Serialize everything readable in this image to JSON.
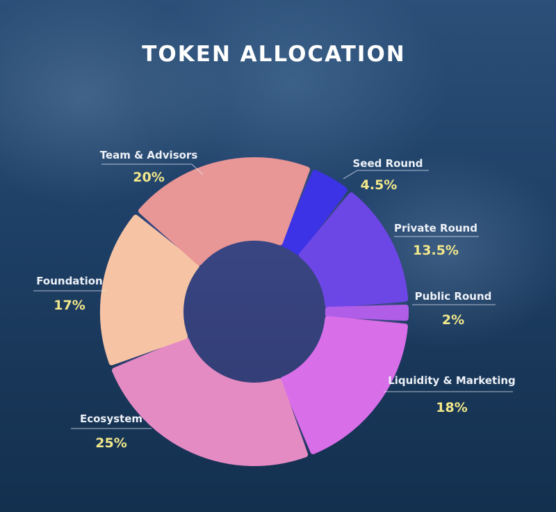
{
  "chart_data": {
    "type": "pie",
    "title": "TOKEN ALLOCATION",
    "slices": [
      {
        "label": "Seed Round",
        "value": 4.5,
        "display": "4.5%",
        "color": "#3c33e6"
      },
      {
        "label": "Private Round",
        "value": 13.5,
        "display": "13.5%",
        "color": "#6d46e6"
      },
      {
        "label": "Public Round",
        "value": 2,
        "display": "2%",
        "color": "#b05ee8"
      },
      {
        "label": "Liquidity & Marketing",
        "value": 18,
        "display": "18%",
        "color": "#d96ee9"
      },
      {
        "label": "Ecosystem",
        "value": 25,
        "display": "25%",
        "color": "#e58bc3"
      },
      {
        "label": "Foundation",
        "value": 17,
        "display": "17%",
        "color": "#f6c4a4"
      },
      {
        "label": "Team & Advisors",
        "value": 20,
        "display": "20%",
        "color": "#e99696"
      }
    ]
  }
}
